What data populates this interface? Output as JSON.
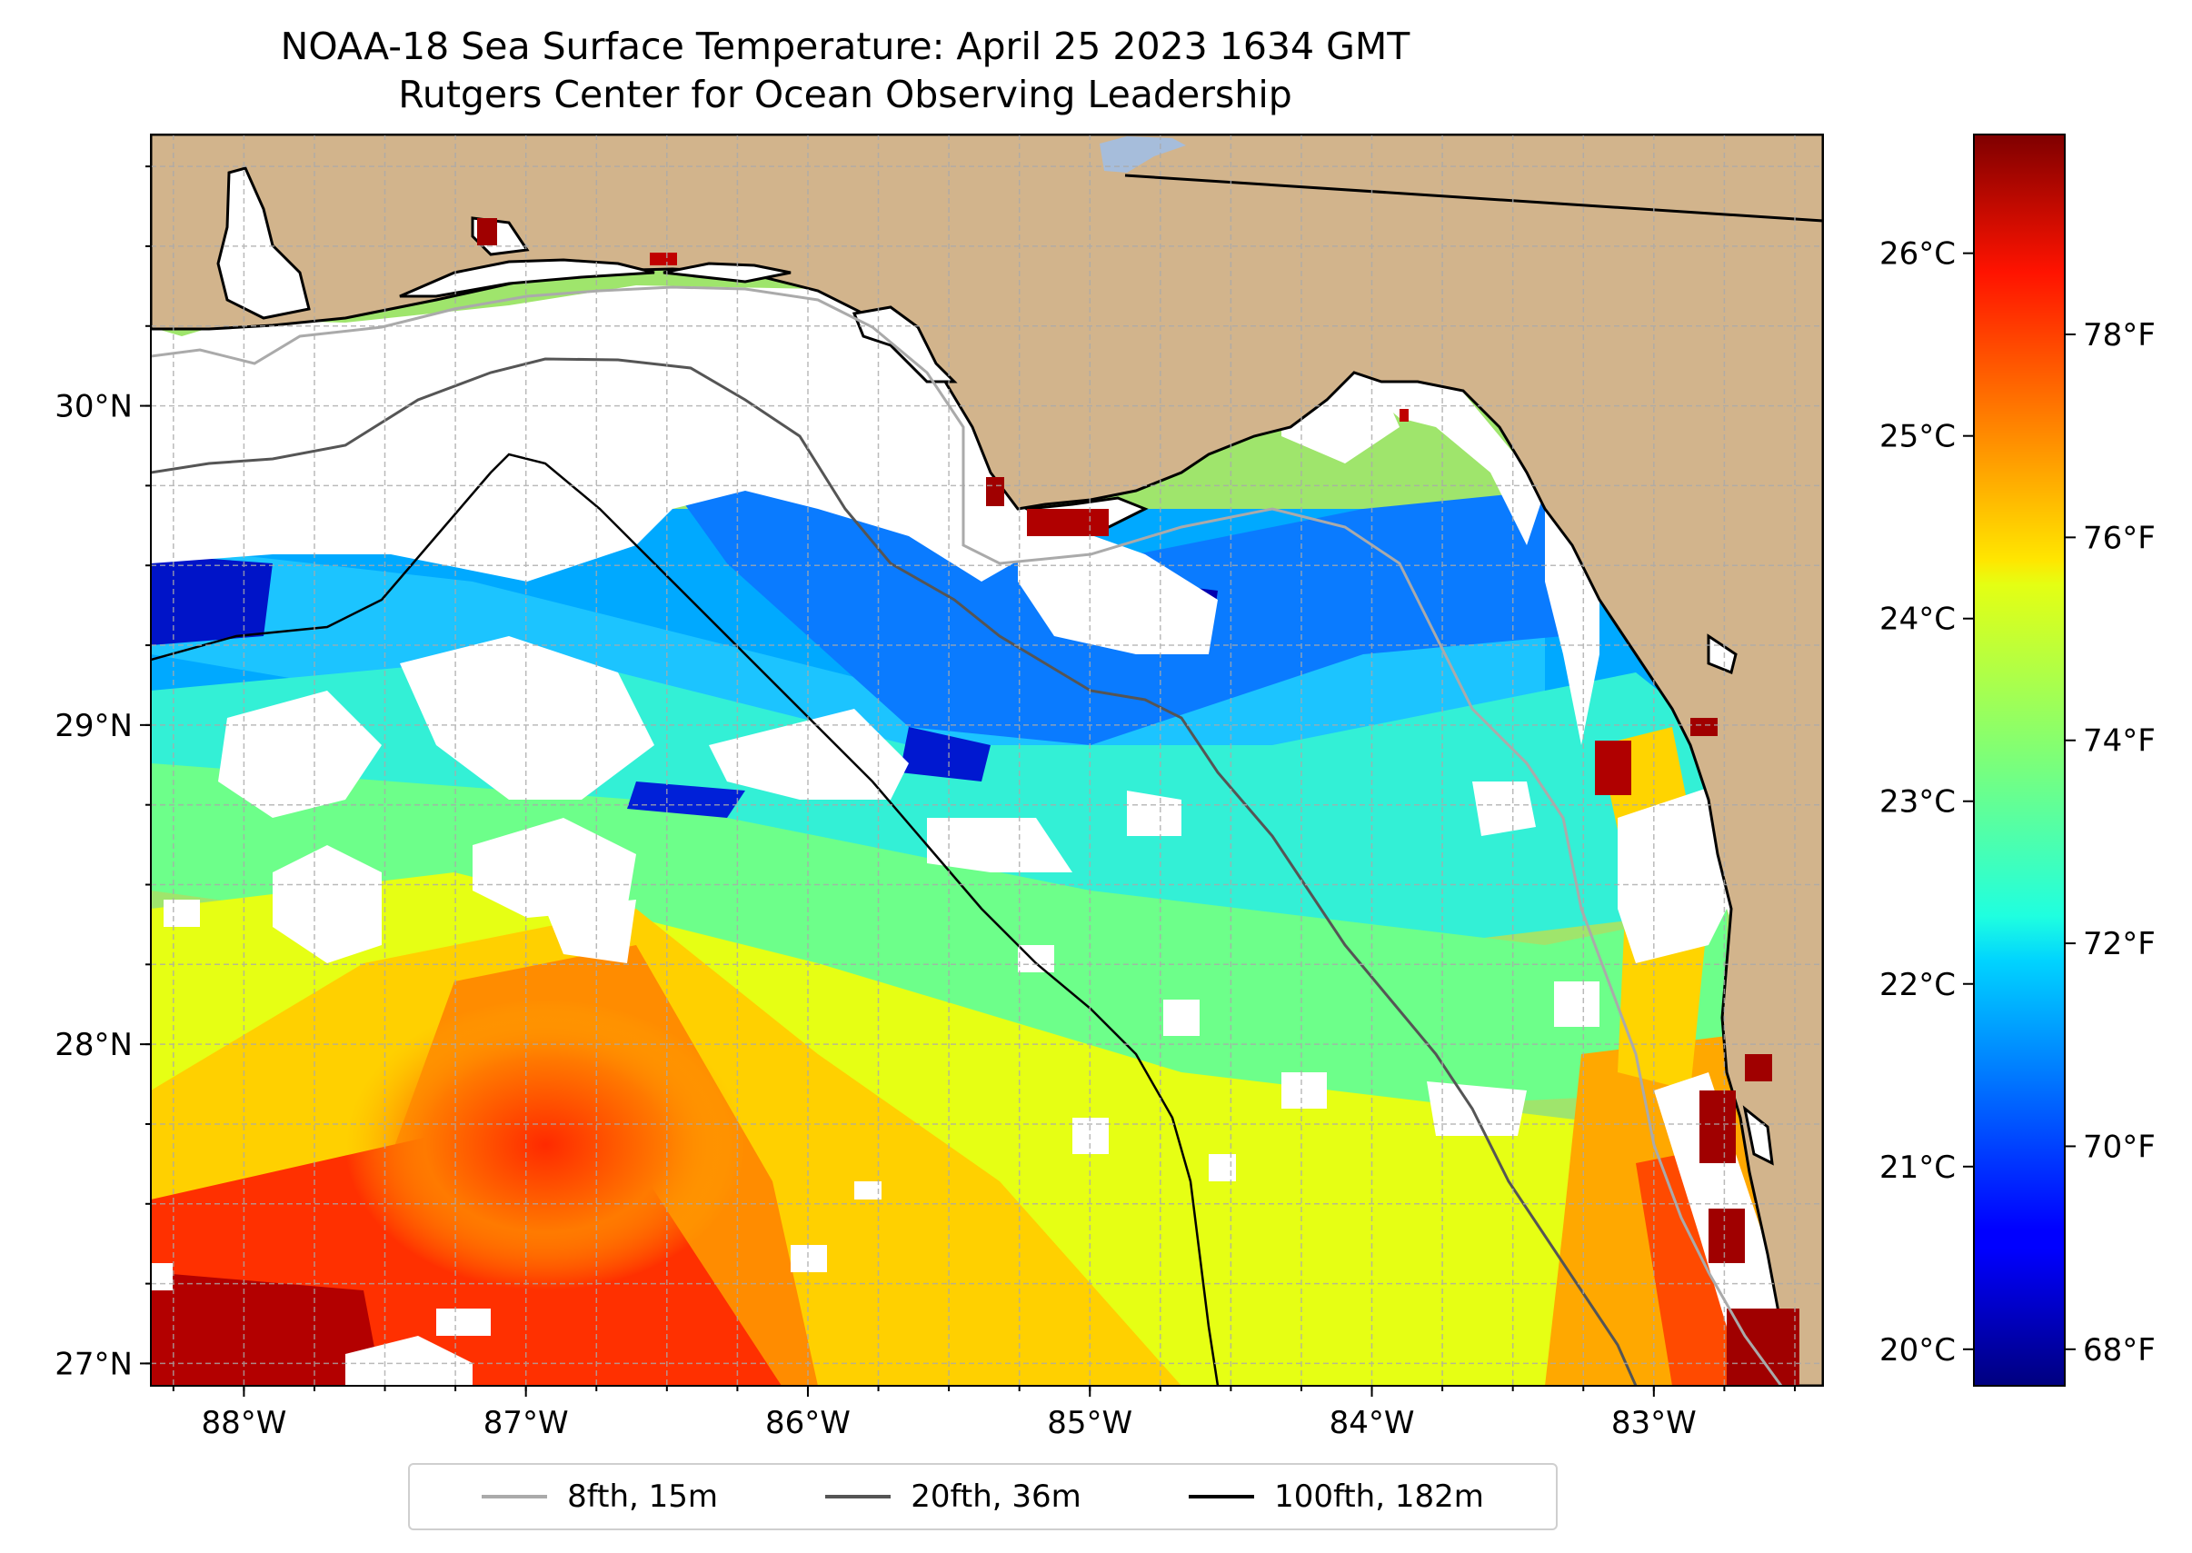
{
  "title": {
    "line1": "NOAA-18 Sea Surface Temperature: April 25 2023 1634 GMT",
    "line2": "Rutgers Center for Ocean Observing Leadership"
  },
  "map": {
    "land_color": "#d2b48c",
    "cloud_color": "#ffffff",
    "grid_color": "#aaaaaa",
    "lon_range": [
      -88.33,
      -82.4
    ],
    "lat_range": [
      26.93,
      30.85
    ],
    "lon_ticks": [
      {
        "value": -88,
        "label": "88°W"
      },
      {
        "value": -87,
        "label": "87°W"
      },
      {
        "value": -86,
        "label": "86°W"
      },
      {
        "value": -85,
        "label": "85°W"
      },
      {
        "value": -84,
        "label": "84°W"
      },
      {
        "value": -83,
        "label": "83°W"
      }
    ],
    "lat_ticks": [
      {
        "value": 30,
        "label": "30°N"
      },
      {
        "value": 29,
        "label": "29°N"
      },
      {
        "value": 28,
        "label": "28°N"
      },
      {
        "value": 27,
        "label": "27°N"
      }
    ]
  },
  "colorbar": {
    "colormap": "jet",
    "celsius_range": [
      19.8,
      26.65
    ],
    "celsius_ticks": [
      {
        "value": 26,
        "label": "26°C"
      },
      {
        "value": 25,
        "label": "25°C"
      },
      {
        "value": 24,
        "label": "24°C"
      },
      {
        "value": 23,
        "label": "23°C"
      },
      {
        "value": 22,
        "label": "22°C"
      },
      {
        "value": 21,
        "label": "21°C"
      },
      {
        "value": 20,
        "label": "20°C"
      }
    ],
    "fahrenheit_ticks": [
      {
        "value": 78,
        "label": "78°F"
      },
      {
        "value": 76,
        "label": "76°F"
      },
      {
        "value": 74,
        "label": "74°F"
      },
      {
        "value": 72,
        "label": "72°F"
      },
      {
        "value": 70,
        "label": "70°F"
      },
      {
        "value": 68,
        "label": "68°F"
      }
    ]
  },
  "legend": {
    "items": [
      {
        "label": "8fth, 15m",
        "color": "#aaaaaa"
      },
      {
        "label": "20fth, 36m",
        "color": "#555555"
      },
      {
        "label": "100fth, 182m",
        "color": "#000000"
      }
    ]
  }
}
